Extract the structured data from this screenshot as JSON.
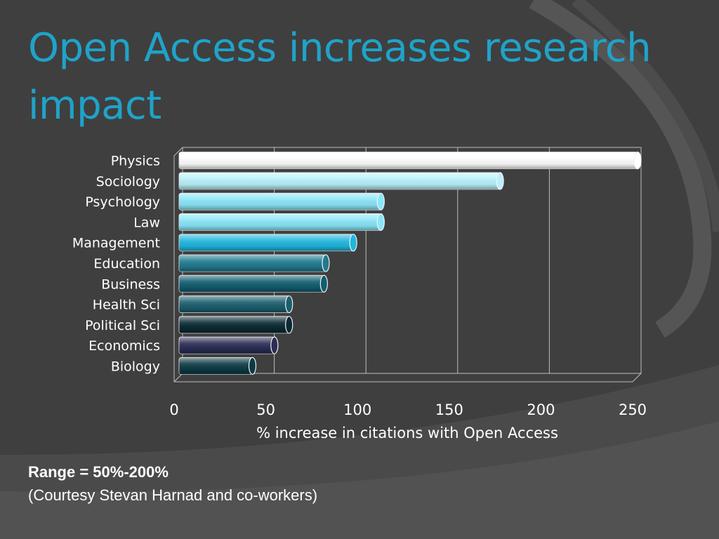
{
  "slide": {
    "title": "Open Access increases research impact",
    "range_note": "Range = 50%-200%",
    "credit": "(Courtesy Stevan Harnad and co-workers)"
  },
  "colors": {
    "background": "#3f3f3f",
    "title": "#1fa3c9",
    "text": "#ffffff"
  },
  "chart_data": {
    "type": "bar",
    "orientation": "horizontal",
    "style": "3d-cylinder",
    "categories": [
      "Physics",
      "Sociology",
      "Psychology",
      "Law",
      "Management",
      "Education",
      "Business",
      "Health Sci",
      "Political Sci",
      "Economics",
      "Biology"
    ],
    "values": [
      250,
      175,
      110,
      110,
      95,
      80,
      79,
      60,
      60,
      52,
      40
    ],
    "bar_colors": [
      "#ffffff",
      "#b9f1fb",
      "#8ae6f8",
      "#8ae6f8",
      "#1fb6dd",
      "#217a90",
      "#125d70",
      "#1b5e6e",
      "#0a2a33",
      "#2b2d55",
      "#0d3a44"
    ],
    "xlabel": "% increase in citations with Open Access",
    "ylabel": "",
    "xlim": [
      0,
      250
    ],
    "xticks": [
      "0",
      "50",
      "100",
      "150",
      "200",
      "250"
    ],
    "grid": true,
    "legend": "none"
  }
}
